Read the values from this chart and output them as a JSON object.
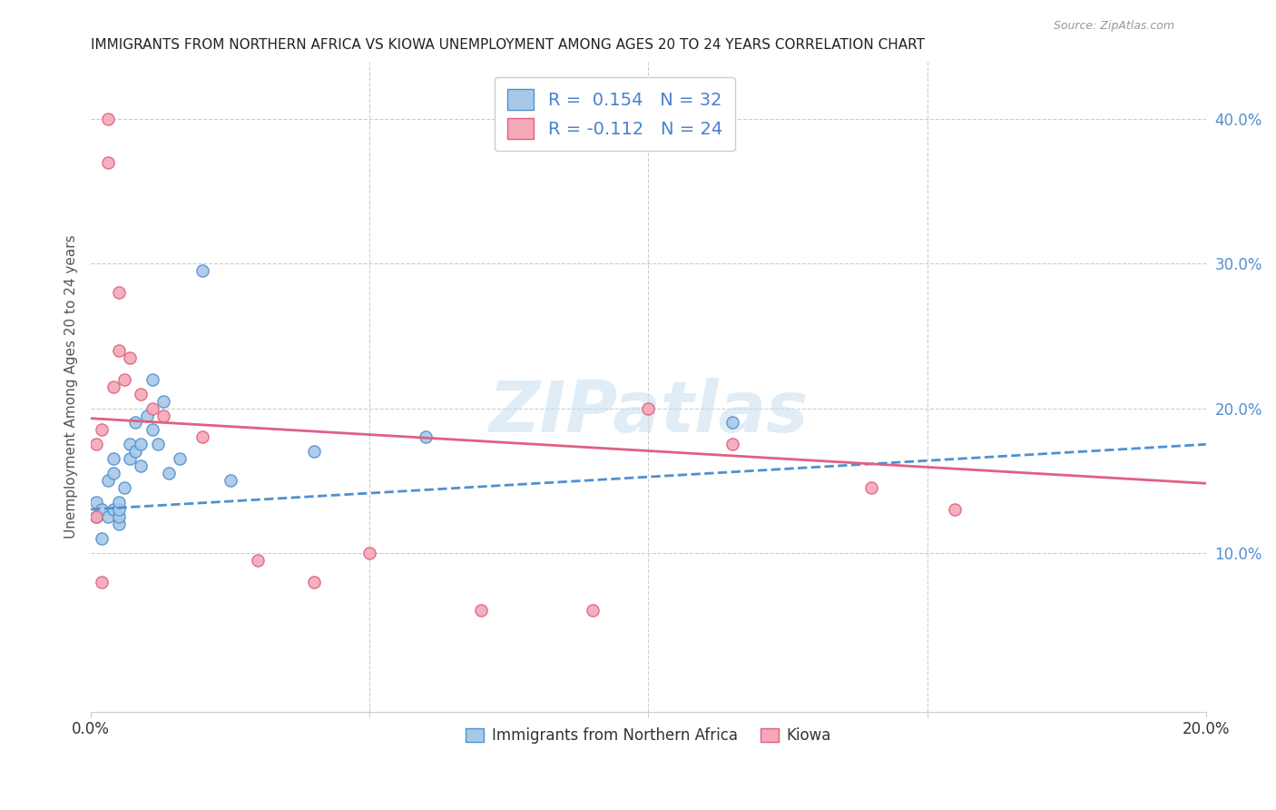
{
  "title": "IMMIGRANTS FROM NORTHERN AFRICA VS KIOWA UNEMPLOYMENT AMONG AGES 20 TO 24 YEARS CORRELATION CHART",
  "source": "Source: ZipAtlas.com",
  "ylabel": "Unemployment Among Ages 20 to 24 years",
  "legend_label_blue": "Immigrants from Northern Africa",
  "legend_label_pink": "Kiowa",
  "R_blue": 0.154,
  "N_blue": 32,
  "R_pink": -0.112,
  "N_pink": 24,
  "x_min": 0.0,
  "x_max": 0.2,
  "y_min": -0.01,
  "y_max": 0.44,
  "x_ticks": [
    0.0,
    0.05,
    0.1,
    0.15,
    0.2
  ],
  "x_tick_labels": [
    "0.0%",
    "",
    "",
    "",
    "20.0%"
  ],
  "y_ticks_right": [
    0.1,
    0.2,
    0.3,
    0.4
  ],
  "y_tick_labels_right": [
    "10.0%",
    "20.0%",
    "30.0%",
    "40.0%"
  ],
  "blue_scatter_x": [
    0.001,
    0.001,
    0.002,
    0.002,
    0.003,
    0.003,
    0.004,
    0.004,
    0.004,
    0.005,
    0.005,
    0.005,
    0.005,
    0.006,
    0.007,
    0.007,
    0.008,
    0.008,
    0.009,
    0.009,
    0.01,
    0.011,
    0.011,
    0.012,
    0.013,
    0.014,
    0.016,
    0.02,
    0.025,
    0.04,
    0.06,
    0.115
  ],
  "blue_scatter_y": [
    0.125,
    0.135,
    0.11,
    0.13,
    0.125,
    0.15,
    0.13,
    0.155,
    0.165,
    0.12,
    0.125,
    0.13,
    0.135,
    0.145,
    0.165,
    0.175,
    0.17,
    0.19,
    0.16,
    0.175,
    0.195,
    0.185,
    0.22,
    0.175,
    0.205,
    0.155,
    0.165,
    0.295,
    0.15,
    0.17,
    0.18,
    0.19
  ],
  "pink_scatter_x": [
    0.001,
    0.001,
    0.002,
    0.002,
    0.003,
    0.003,
    0.004,
    0.005,
    0.005,
    0.006,
    0.007,
    0.009,
    0.011,
    0.013,
    0.02,
    0.03,
    0.04,
    0.05,
    0.07,
    0.09,
    0.1,
    0.115,
    0.14,
    0.155
  ],
  "pink_scatter_y": [
    0.125,
    0.175,
    0.08,
    0.185,
    0.37,
    0.4,
    0.215,
    0.24,
    0.28,
    0.22,
    0.235,
    0.21,
    0.2,
    0.195,
    0.18,
    0.095,
    0.08,
    0.1,
    0.06,
    0.06,
    0.2,
    0.175,
    0.145,
    0.13
  ],
  "blue_color": "#a8c8e8",
  "pink_color": "#f4a8b8",
  "blue_line_color": "#5090d0",
  "pink_line_color": "#e06080",
  "blue_trend_x": [
    0.0,
    0.2
  ],
  "blue_trend_y": [
    0.13,
    0.175
  ],
  "pink_trend_x": [
    0.0,
    0.2
  ],
  "pink_trend_y": [
    0.193,
    0.148
  ],
  "watermark": "ZIPatlas",
  "background_color": "#ffffff",
  "grid_color": "#cccccc"
}
